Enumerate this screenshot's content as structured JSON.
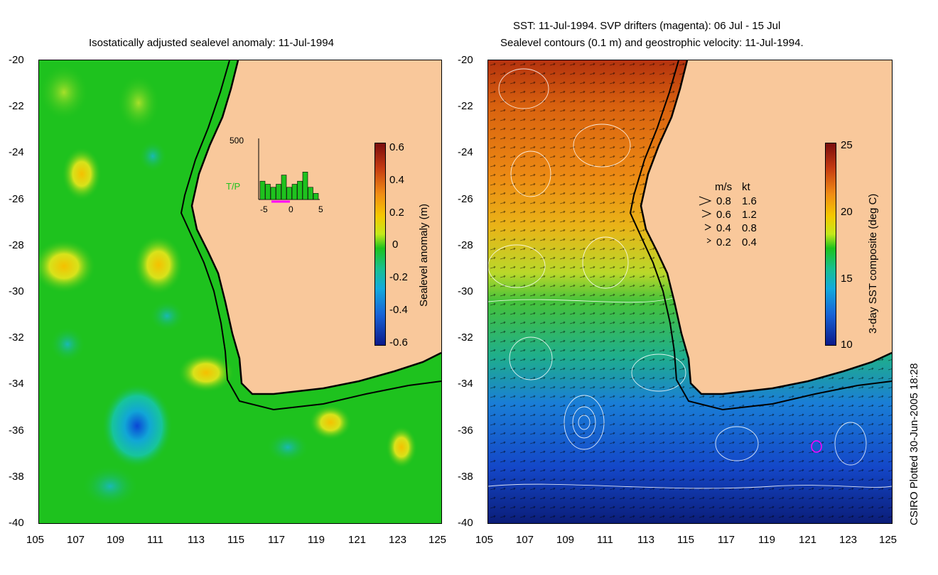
{
  "left": {
    "title": "Isostatically adjusted sealevel anomaly: 11-Jul-1994",
    "yticks": [
      "-20",
      "-22",
      "-24",
      "-26",
      "-28",
      "-30",
      "-32",
      "-34",
      "-36",
      "-38",
      "-40"
    ],
    "xticks": [
      "105",
      "107",
      "109",
      "111",
      "113",
      "115",
      "117",
      "119",
      "121",
      "123",
      "125"
    ],
    "colorbar": {
      "label": "Sealevel anomaly (m)",
      "ticks": [
        "0.6",
        "0.4",
        "0.2",
        "0",
        "-0.2",
        "-0.4",
        "-0.6"
      ]
    },
    "inset": {
      "ymax": "500",
      "label": "T/P",
      "xticks": [
        "-5",
        "0",
        "5"
      ],
      "bars": [
        0.3,
        0.25,
        0.2,
        0.25,
        0.4,
        0.2,
        0.25,
        0.3,
        0.45,
        0.2,
        0.1
      ]
    },
    "colors": {
      "ocean": "#1ec21e",
      "land": "#f9c89b"
    }
  },
  "right": {
    "title_line1": "SST: 11-Jul-1994. SVP drifters (magenta): 06 Jul - 15 Jul",
    "title_line2": "Sealevel contours (0.1 m) and geostrophic velocity: 11-Jul-1994.",
    "yticks": [
      "-20",
      "-22",
      "-24",
      "-26",
      "-28",
      "-30",
      "-32",
      "-34",
      "-36",
      "-38",
      "-40"
    ],
    "xticks": [
      "105",
      "107",
      "109",
      "111",
      "113",
      "115",
      "117",
      "119",
      "121",
      "123",
      "125"
    ],
    "colorbar": {
      "label": "3-day SST composite (deg C)",
      "ticks": [
        "25",
        "20",
        "15",
        "10"
      ]
    },
    "legend": {
      "head": [
        "m/s",
        "kt"
      ],
      "rows": [
        [
          "0.8",
          "1.6"
        ],
        [
          "0.6",
          "1.2"
        ],
        [
          "0.4",
          "0.8"
        ],
        [
          "0.2",
          "0.4"
        ]
      ]
    }
  },
  "footer": {
    "credit": "CSIRO Plotted 30-Jun-2005 18:28"
  }
}
